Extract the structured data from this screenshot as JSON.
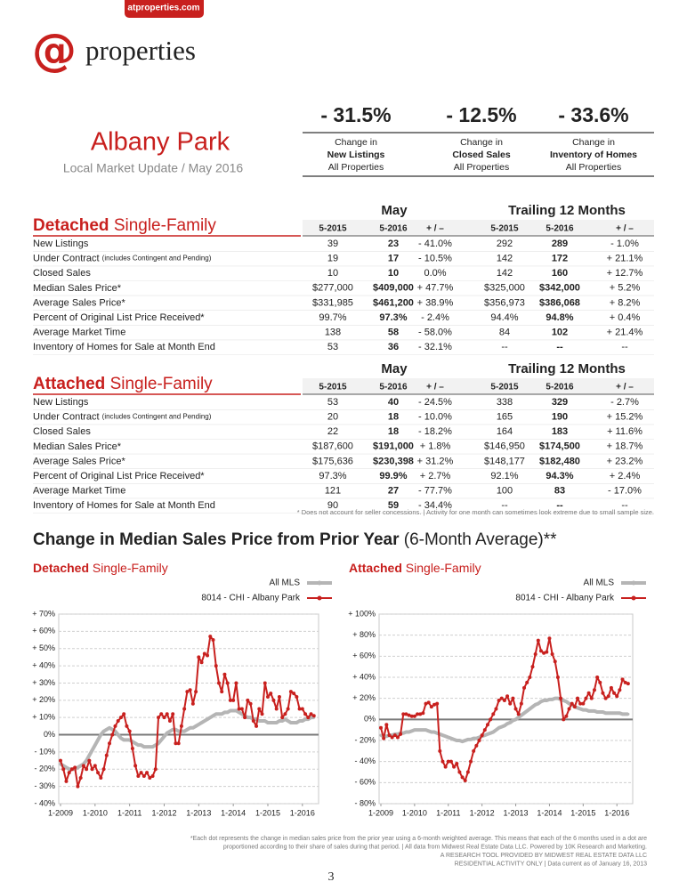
{
  "header": {
    "site": "atproperties.com",
    "logo_mark": "@",
    "logo_text": "properties"
  },
  "area": {
    "title": "Albany Park",
    "subtitle": "Local Market Update / May 2016"
  },
  "stats": [
    {
      "value": "- 31.5%",
      "line1": "Change in",
      "line2": "New Listings",
      "line3": "All Properties"
    },
    {
      "value": "- 12.5%",
      "line1": "Change in",
      "line2": "Closed Sales",
      "line3": "All Properties"
    },
    {
      "value": "- 33.6%",
      "line1": "Change in",
      "line2": "Inventory of Homes",
      "line3": "All Properties"
    }
  ],
  "tables": [
    {
      "title_bold": "Detached",
      "title_rest": "Single-Family",
      "period_headers": [
        "May",
        "Trailing 12 Months"
      ],
      "columns": [
        "5-2015",
        "5-2016",
        "+ / –",
        "5-2015",
        "5-2016",
        "+ / –"
      ],
      "rows": [
        {
          "label": "New Listings",
          "values": [
            "39",
            "23",
            "- 41.0%",
            "292",
            "289",
            "- 1.0%"
          ]
        },
        {
          "label": "Under Contract",
          "note": "(includes Contingent and Pending)",
          "values": [
            "19",
            "17",
            "- 10.5%",
            "142",
            "172",
            "+ 21.1%"
          ]
        },
        {
          "label": "Closed Sales",
          "values": [
            "10",
            "10",
            "0.0%",
            "142",
            "160",
            "+ 12.7%"
          ]
        },
        {
          "label": "Median Sales Price*",
          "values": [
            "$277,000",
            "$409,000",
            "+ 47.7%",
            "$325,000",
            "$342,000",
            "+ 5.2%"
          ]
        },
        {
          "label": "Average Sales Price*",
          "values": [
            "$331,985",
            "$461,200",
            "+ 38.9%",
            "$356,973",
            "$386,068",
            "+ 8.2%"
          ]
        },
        {
          "label": "Percent of Original List Price Received*",
          "values": [
            "99.7%",
            "97.3%",
            "- 2.4%",
            "94.4%",
            "94.8%",
            "+ 0.4%"
          ]
        },
        {
          "label": "Average Market Time",
          "values": [
            "138",
            "58",
            "- 58.0%",
            "84",
            "102",
            "+ 21.4%"
          ]
        },
        {
          "label": "Inventory of Homes for Sale at Month End",
          "values": [
            "53",
            "36",
            "- 32.1%",
            "--",
            "--",
            "--"
          ]
        }
      ]
    },
    {
      "title_bold": "Attached",
      "title_rest": "Single-Family",
      "period_headers": [
        "May",
        "Trailing 12 Months"
      ],
      "columns": [
        "5-2015",
        "5-2016",
        "+ / –",
        "5-2015",
        "5-2016",
        "+ / –"
      ],
      "rows": [
        {
          "label": "New Listings",
          "values": [
            "53",
            "40",
            "- 24.5%",
            "338",
            "329",
            "- 2.7%"
          ]
        },
        {
          "label": "Under Contract",
          "note": "(includes Contingent and Pending)",
          "values": [
            "20",
            "18",
            "- 10.0%",
            "165",
            "190",
            "+ 15.2%"
          ]
        },
        {
          "label": "Closed Sales",
          "values": [
            "22",
            "18",
            "- 18.2%",
            "164",
            "183",
            "+ 11.6%"
          ]
        },
        {
          "label": "Median Sales Price*",
          "values": [
            "$187,600",
            "$191,000",
            "+ 1.8%",
            "$146,950",
            "$174,500",
            "+ 18.7%"
          ]
        },
        {
          "label": "Average Sales Price*",
          "values": [
            "$175,636",
            "$230,398",
            "+ 31.2%",
            "$148,177",
            "$182,480",
            "+ 23.2%"
          ]
        },
        {
          "label": "Percent of Original List Price Received*",
          "values": [
            "97.3%",
            "99.9%",
            "+ 2.7%",
            "92.1%",
            "94.3%",
            "+ 2.4%"
          ]
        },
        {
          "label": "Average Market Time",
          "values": [
            "121",
            "27",
            "- 77.7%",
            "100",
            "83",
            "- 17.0%"
          ]
        },
        {
          "label": "Inventory of Homes for Sale at Month End",
          "values": [
            "90",
            "59",
            "- 34.4%",
            "--",
            "--",
            "--"
          ]
        }
      ]
    }
  ],
  "table_footnote": "* Does not account for seller concessions.  |  Activity for one month can sometimes look extreme due to small sample size.",
  "section": {
    "title": "Change in Median Sales Price from Prior Year",
    "title_suffix": "(6-Month Average)**"
  },
  "chart_data": [
    {
      "type": "line",
      "title_bold": "Detached",
      "title_rest": "Single-Family",
      "grid": true,
      "x": [
        "2009-01",
        "2009-02",
        "2009-03",
        "2009-04",
        "2009-05",
        "2009-06",
        "2009-07",
        "2009-08",
        "2009-09",
        "2009-10",
        "2009-11",
        "2009-12",
        "2010-01",
        "2010-02",
        "2010-03",
        "2010-04",
        "2010-05",
        "2010-06",
        "2010-07",
        "2010-08",
        "2010-09",
        "2010-10",
        "2010-11",
        "2010-12",
        "2011-01",
        "2011-02",
        "2011-03",
        "2011-04",
        "2011-05",
        "2011-06",
        "2011-07",
        "2011-08",
        "2011-09",
        "2011-10",
        "2011-11",
        "2011-12",
        "2012-01",
        "2012-02",
        "2012-03",
        "2012-04",
        "2012-05",
        "2012-06",
        "2012-07",
        "2012-08",
        "2012-09",
        "2012-10",
        "2012-11",
        "2012-12",
        "2013-01",
        "2013-02",
        "2013-03",
        "2013-04",
        "2013-05",
        "2013-06",
        "2013-07",
        "2013-08",
        "2013-09",
        "2013-10",
        "2013-11",
        "2013-12",
        "2014-01",
        "2014-02",
        "2014-03",
        "2014-04",
        "2014-05",
        "2014-06",
        "2014-07",
        "2014-08",
        "2014-09",
        "2014-10",
        "2014-11",
        "2014-12",
        "2015-01",
        "2015-02",
        "2015-03",
        "2015-04",
        "2015-05",
        "2015-06",
        "2015-07",
        "2015-08",
        "2015-09",
        "2015-10",
        "2015-11",
        "2015-12",
        "2016-01",
        "2016-02",
        "2016-03",
        "2016-04",
        "2016-05"
      ],
      "xlim": [
        "2009-01",
        "2016-06"
      ],
      "xticks": [
        {
          "value": "2009-01",
          "label": "1-2009"
        },
        {
          "value": "2010-01",
          "label": "1-2010"
        },
        {
          "value": "2011-01",
          "label": "1-2011"
        },
        {
          "value": "2012-01",
          "label": "1-2012"
        },
        {
          "value": "2013-01",
          "label": "1-2013"
        },
        {
          "value": "2014-01",
          "label": "1-2014"
        },
        {
          "value": "2015-01",
          "label": "1-2015"
        },
        {
          "value": "2016-01",
          "label": "1-2016"
        }
      ],
      "ylim": [
        -40,
        70
      ],
      "yticks": [
        {
          "value": 70,
          "label": "+ 70%"
        },
        {
          "value": 60,
          "label": "+ 60%"
        },
        {
          "value": 50,
          "label": "+ 50%"
        },
        {
          "value": 40,
          "label": "+ 40%"
        },
        {
          "value": 30,
          "label": "+ 30%"
        },
        {
          "value": 20,
          "label": "+ 20%"
        },
        {
          "value": 10,
          "label": "+ 10%"
        },
        {
          "value": 0,
          "label": "0%"
        },
        {
          "value": -10,
          "label": "- 10%"
        },
        {
          "value": -20,
          "label": "- 20%"
        },
        {
          "value": -30,
          "label": "- 30%"
        },
        {
          "value": -40,
          "label": "- 40%"
        }
      ],
      "series": [
        {
          "name": "All MLS",
          "color": "#b5b5b5",
          "values": [
            -17,
            -18,
            -19,
            -20,
            -20,
            -20,
            -19,
            -18,
            -17,
            -15,
            -12,
            -9,
            -6,
            -3,
            0,
            2,
            3,
            4,
            3,
            2,
            0,
            -2,
            -3,
            -3,
            -3,
            -4,
            -5,
            -6,
            -6,
            -7,
            -7,
            -7,
            -7,
            -6,
            -5,
            -3,
            -1,
            1,
            2,
            3,
            3,
            2,
            2,
            2,
            3,
            4,
            4,
            5,
            6,
            7,
            8,
            9,
            10,
            11,
            12,
            12,
            12,
            13,
            13,
            14,
            14,
            14,
            13,
            12,
            11,
            10,
            10,
            9,
            9,
            8,
            8,
            8,
            7,
            7,
            7,
            7,
            8,
            8,
            9,
            8,
            7,
            7,
            7,
            8,
            8,
            9,
            9,
            10,
            10
          ]
        },
        {
          "name": "8014 - CHI - Albany Park",
          "color": "#c8201e",
          "values": [
            -15,
            -20,
            -27,
            -22,
            -20,
            -19,
            -30,
            -25,
            -18,
            -20,
            -15,
            -20,
            -18,
            -22,
            -25,
            -20,
            -12,
            -5,
            0,
            5,
            8,
            10,
            12,
            5,
            2,
            -8,
            -18,
            -24,
            -22,
            -24,
            -22,
            -25,
            -24,
            -20,
            10,
            12,
            10,
            12,
            8,
            12,
            -5,
            -5,
            5,
            15,
            25,
            26,
            18,
            25,
            45,
            42,
            47,
            46,
            57,
            55,
            40,
            30,
            25,
            35,
            30,
            20,
            20,
            30,
            15,
            15,
            10,
            20,
            18,
            8,
            5,
            15,
            12,
            30,
            22,
            24,
            20,
            15,
            22,
            10,
            12,
            15,
            25,
            24,
            22,
            15,
            15,
            12,
            10,
            12,
            11
          ]
        }
      ]
    },
    {
      "type": "line",
      "title_bold": "Attached",
      "title_rest": "Single-Family",
      "grid": true,
      "x": [
        "2009-01",
        "2009-02",
        "2009-03",
        "2009-04",
        "2009-05",
        "2009-06",
        "2009-07",
        "2009-08",
        "2009-09",
        "2009-10",
        "2009-11",
        "2009-12",
        "2010-01",
        "2010-02",
        "2010-03",
        "2010-04",
        "2010-05",
        "2010-06",
        "2010-07",
        "2010-08",
        "2010-09",
        "2010-10",
        "2010-11",
        "2010-12",
        "2011-01",
        "2011-02",
        "2011-03",
        "2011-04",
        "2011-05",
        "2011-06",
        "2011-07",
        "2011-08",
        "2011-09",
        "2011-10",
        "2011-11",
        "2011-12",
        "2012-01",
        "2012-02",
        "2012-03",
        "2012-04",
        "2012-05",
        "2012-06",
        "2012-07",
        "2012-08",
        "2012-09",
        "2012-10",
        "2012-11",
        "2012-12",
        "2013-01",
        "2013-02",
        "2013-03",
        "2013-04",
        "2013-05",
        "2013-06",
        "2013-07",
        "2013-08",
        "2013-09",
        "2013-10",
        "2013-11",
        "2013-12",
        "2014-01",
        "2014-02",
        "2014-03",
        "2014-04",
        "2014-05",
        "2014-06",
        "2014-07",
        "2014-08",
        "2014-09",
        "2014-10",
        "2014-11",
        "2014-12",
        "2015-01",
        "2015-02",
        "2015-03",
        "2015-04",
        "2015-05",
        "2015-06",
        "2015-07",
        "2015-08",
        "2015-09",
        "2015-10",
        "2015-11",
        "2015-12",
        "2016-01",
        "2016-02",
        "2016-03",
        "2016-04",
        "2016-05"
      ],
      "xlim": [
        "2009-01",
        "2016-06"
      ],
      "xticks": [
        {
          "value": "2009-01",
          "label": "1-2009"
        },
        {
          "value": "2010-01",
          "label": "1-2010"
        },
        {
          "value": "2011-01",
          "label": "1-2011"
        },
        {
          "value": "2012-01",
          "label": "1-2012"
        },
        {
          "value": "2013-01",
          "label": "1-2013"
        },
        {
          "value": "2014-01",
          "label": "1-2014"
        },
        {
          "value": "2015-01",
          "label": "1-2015"
        },
        {
          "value": "2016-01",
          "label": "1-2016"
        }
      ],
      "ylim": [
        -80,
        100
      ],
      "yticks": [
        {
          "value": 100,
          "label": "+ 100%"
        },
        {
          "value": 80,
          "label": "+ 80%"
        },
        {
          "value": 60,
          "label": "+ 60%"
        },
        {
          "value": 40,
          "label": "+ 40%"
        },
        {
          "value": 20,
          "label": "+ 20%"
        },
        {
          "value": 0,
          "label": "0%"
        },
        {
          "value": -20,
          "label": "- 20%"
        },
        {
          "value": -40,
          "label": "- 40%"
        },
        {
          "value": -60,
          "label": "- 60%"
        },
        {
          "value": -80,
          "label": "- 80%"
        }
      ],
      "series": [
        {
          "name": "All MLS",
          "color": "#b5b5b5",
          "values": [
            -15,
            -16,
            -16,
            -15,
            -15,
            -14,
            -14,
            -13,
            -13,
            -12,
            -12,
            -11,
            -10,
            -10,
            -10,
            -10,
            -10,
            -11,
            -12,
            -12,
            -13,
            -14,
            -15,
            -16,
            -17,
            -18,
            -19,
            -20,
            -20,
            -21,
            -20,
            -19,
            -19,
            -18,
            -18,
            -17,
            -16,
            -15,
            -14,
            -13,
            -12,
            -10,
            -8,
            -7,
            -6,
            -4,
            -3,
            -1,
            0,
            2,
            4,
            6,
            8,
            10,
            12,
            14,
            15,
            17,
            18,
            18,
            19,
            19,
            20,
            20,
            19,
            18,
            17,
            15,
            14,
            12,
            11,
            10,
            9,
            9,
            8,
            8,
            8,
            7,
            7,
            7,
            6,
            6,
            6,
            6,
            6,
            6,
            5,
            5,
            5
          ]
        },
        {
          "name": "8014 - CHI - Albany Park",
          "color": "#c8201e",
          "values": [
            -8,
            -18,
            -5,
            -15,
            -17,
            -15,
            -17,
            -14,
            5,
            5,
            4,
            3,
            3,
            5,
            5,
            6,
            15,
            16,
            12,
            14,
            15,
            -30,
            -40,
            -45,
            -40,
            -40,
            -45,
            -42,
            -50,
            -55,
            -58,
            -50,
            -40,
            -30,
            -25,
            -20,
            -15,
            -10,
            -5,
            0,
            5,
            10,
            18,
            20,
            18,
            22,
            15,
            20,
            10,
            5,
            15,
            30,
            35,
            40,
            50,
            62,
            75,
            65,
            63,
            64,
            77,
            62,
            55,
            40,
            20,
            0,
            3,
            10,
            15,
            12,
            20,
            15,
            15,
            20,
            25,
            20,
            28,
            40,
            35,
            25,
            20,
            22,
            30,
            25,
            22,
            28,
            38,
            35,
            34
          ]
        }
      ]
    }
  ],
  "footnote": {
    "lines": [
      "*Each dot represents the change in median sales price from the prior year using a 6-month weighted average. This means that each of the 6 months used in a dot are",
      "proportioned according to their share of sales during that period.  |  All data from Midwest Real Estate Data LLC. Powered by 10K Research and Marketing.",
      "A RESEARCH TOOL PROVIDED BY MIDWEST REAL ESTATE DATA LLC",
      "RESIDENTIAL ACTIVITY ONLY  |  Data current as of January 16, 2013"
    ],
    "page_number": "3"
  }
}
